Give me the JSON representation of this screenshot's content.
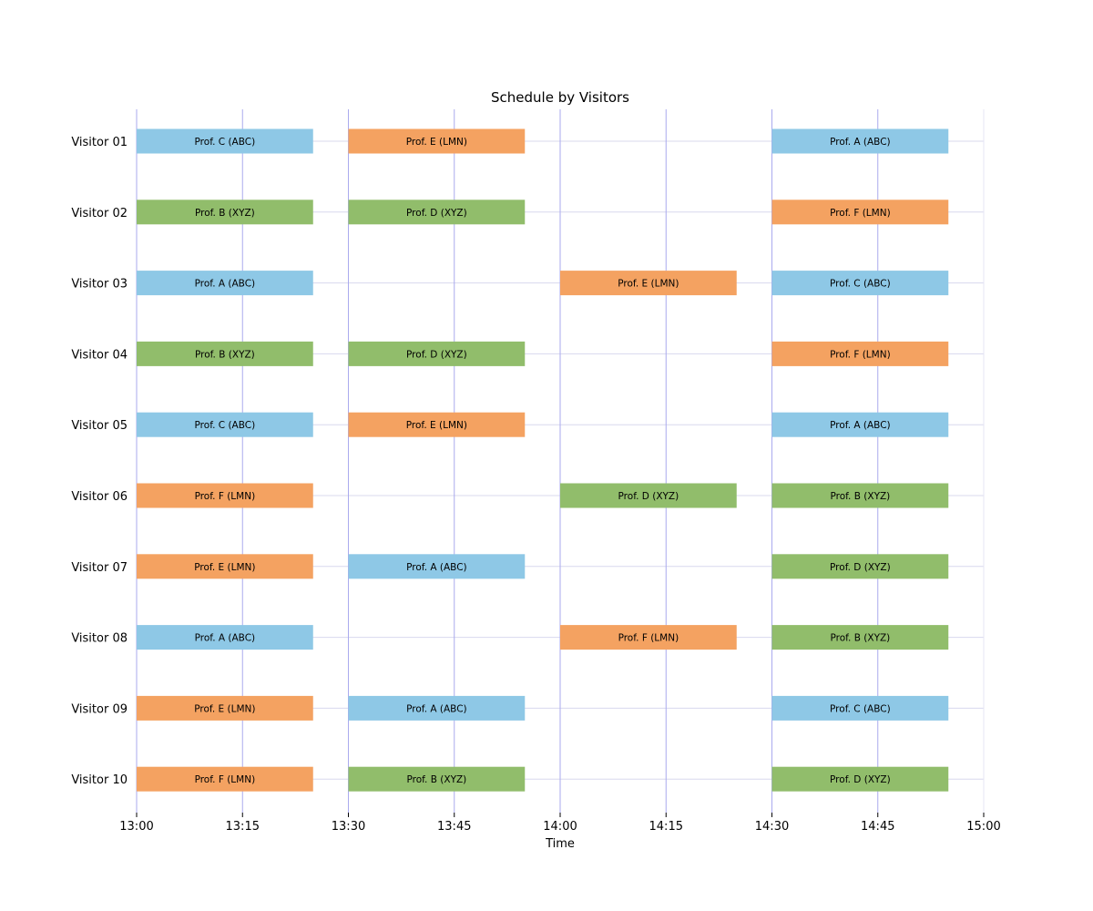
{
  "chart_data": {
    "type": "gantt",
    "title": "Schedule by Visitors",
    "xlabel": "Time",
    "ylabel": "",
    "x_ticks": [
      "13:00",
      "13:15",
      "13:30",
      "13:45",
      "14:00",
      "14:15",
      "14:30",
      "14:45",
      "15:00"
    ],
    "xlim": [
      "13:00",
      "15:00"
    ],
    "grid": true,
    "colors": {
      "ABC": "#8ec8e6",
      "XYZ": "#91bd6b",
      "LMN": "#f4a261",
      "vgrid": "#aaaaee",
      "hgrid": "#d8d8ee"
    },
    "visitors": [
      {
        "name": "Visitor 01",
        "meetings": [
          {
            "label": "Prof. C (ABC)",
            "group": "ABC",
            "start": "13:00",
            "end": "13:25"
          },
          {
            "label": "Prof. E (LMN)",
            "group": "LMN",
            "start": "13:30",
            "end": "13:55"
          },
          {
            "label": "Prof. A (ABC)",
            "group": "ABC",
            "start": "14:30",
            "end": "14:55"
          }
        ]
      },
      {
        "name": "Visitor 02",
        "meetings": [
          {
            "label": "Prof. B (XYZ)",
            "group": "XYZ",
            "start": "13:00",
            "end": "13:25"
          },
          {
            "label": "Prof. D (XYZ)",
            "group": "XYZ",
            "start": "13:30",
            "end": "13:55"
          },
          {
            "label": "Prof. F (LMN)",
            "group": "LMN",
            "start": "14:30",
            "end": "14:55"
          }
        ]
      },
      {
        "name": "Visitor 03",
        "meetings": [
          {
            "label": "Prof. A (ABC)",
            "group": "ABC",
            "start": "13:00",
            "end": "13:25"
          },
          {
            "label": "Prof. E (LMN)",
            "group": "LMN",
            "start": "14:00",
            "end": "14:25"
          },
          {
            "label": "Prof. C (ABC)",
            "group": "ABC",
            "start": "14:30",
            "end": "14:55"
          }
        ]
      },
      {
        "name": "Visitor 04",
        "meetings": [
          {
            "label": "Prof. B (XYZ)",
            "group": "XYZ",
            "start": "13:00",
            "end": "13:25"
          },
          {
            "label": "Prof. D (XYZ)",
            "group": "XYZ",
            "start": "13:30",
            "end": "13:55"
          },
          {
            "label": "Prof. F (LMN)",
            "group": "LMN",
            "start": "14:30",
            "end": "14:55"
          }
        ]
      },
      {
        "name": "Visitor 05",
        "meetings": [
          {
            "label": "Prof. C (ABC)",
            "group": "ABC",
            "start": "13:00",
            "end": "13:25"
          },
          {
            "label": "Prof. E (LMN)",
            "group": "LMN",
            "start": "13:30",
            "end": "13:55"
          },
          {
            "label": "Prof. A (ABC)",
            "group": "ABC",
            "start": "14:30",
            "end": "14:55"
          }
        ]
      },
      {
        "name": "Visitor 06",
        "meetings": [
          {
            "label": "Prof. F (LMN)",
            "group": "LMN",
            "start": "13:00",
            "end": "13:25"
          },
          {
            "label": "Prof. D (XYZ)",
            "group": "XYZ",
            "start": "14:00",
            "end": "14:25"
          },
          {
            "label": "Prof. B (XYZ)",
            "group": "XYZ",
            "start": "14:30",
            "end": "14:55"
          }
        ]
      },
      {
        "name": "Visitor 07",
        "meetings": [
          {
            "label": "Prof. E (LMN)",
            "group": "LMN",
            "start": "13:00",
            "end": "13:25"
          },
          {
            "label": "Prof. A (ABC)",
            "group": "ABC",
            "start": "13:30",
            "end": "13:55"
          },
          {
            "label": "Prof. D (XYZ)",
            "group": "XYZ",
            "start": "14:30",
            "end": "14:55"
          }
        ]
      },
      {
        "name": "Visitor 08",
        "meetings": [
          {
            "label": "Prof. A (ABC)",
            "group": "ABC",
            "start": "13:00",
            "end": "13:25"
          },
          {
            "label": "Prof. F (LMN)",
            "group": "LMN",
            "start": "14:00",
            "end": "14:25"
          },
          {
            "label": "Prof. B (XYZ)",
            "group": "XYZ",
            "start": "14:30",
            "end": "14:55"
          }
        ]
      },
      {
        "name": "Visitor 09",
        "meetings": [
          {
            "label": "Prof. E (LMN)",
            "group": "LMN",
            "start": "13:00",
            "end": "13:25"
          },
          {
            "label": "Prof. A (ABC)",
            "group": "ABC",
            "start": "13:30",
            "end": "13:55"
          },
          {
            "label": "Prof. C (ABC)",
            "group": "ABC",
            "start": "14:30",
            "end": "14:55"
          }
        ]
      },
      {
        "name": "Visitor 10",
        "meetings": [
          {
            "label": "Prof. F (LMN)",
            "group": "LMN",
            "start": "13:00",
            "end": "13:25"
          },
          {
            "label": "Prof. B (XYZ)",
            "group": "XYZ",
            "start": "13:30",
            "end": "13:55"
          },
          {
            "label": "Prof. D (XYZ)",
            "group": "XYZ",
            "start": "14:30",
            "end": "14:55"
          }
        ]
      }
    ]
  }
}
